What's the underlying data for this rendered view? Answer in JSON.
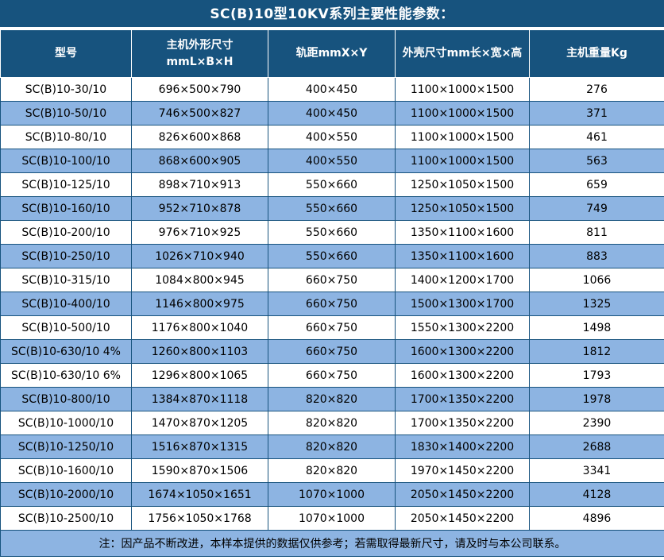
{
  "title": "SC(B)10型10KV系列主要性能参数：",
  "colors": {
    "header_bg": "#17537e",
    "header_text": "#ffffff",
    "row_bg": "#ffffff",
    "row_alt_bg": "#8db4e2",
    "border": "#17537e",
    "body_text": "#000000"
  },
  "table": {
    "columns": [
      {
        "label": "型号",
        "label2": ""
      },
      {
        "label": "主机外形尺寸",
        "label2": "mmL×B×H"
      },
      {
        "label": "轨距mmX×Y",
        "label2": ""
      },
      {
        "label": "外壳尺寸mm长×宽×高",
        "label2": ""
      },
      {
        "label": "主机重量Kg",
        "label2": ""
      }
    ],
    "rows": [
      [
        "SC(B)10-30/10",
        "696×500×790",
        "400×450",
        "1100×1000×1500",
        "276"
      ],
      [
        "SC(B)10-50/10",
        "746×500×827",
        "400×450",
        "1100×1000×1500",
        "371"
      ],
      [
        "SC(B)10-80/10",
        "826×600×868",
        "400×550",
        "1100×1000×1500",
        "461"
      ],
      [
        "SC(B)10-100/10",
        "868×600×905",
        "400×550",
        "1100×1000×1500",
        "563"
      ],
      [
        "SC(B)10-125/10",
        "898×710×913",
        "550×660",
        "1250×1050×1500",
        "659"
      ],
      [
        "SC(B)10-160/10",
        "952×710×878",
        "550×660",
        "1250×1050×1500",
        "749"
      ],
      [
        "SC(B)10-200/10",
        "976×710×925",
        "550×660",
        "1350×1100×1600",
        "811"
      ],
      [
        "SC(B)10-250/10",
        "1026×710×940",
        "550×660",
        "1350×1100×1600",
        "883"
      ],
      [
        "SC(B)10-315/10",
        "1084×800×945",
        "660×750",
        "1400×1200×1700",
        "1066"
      ],
      [
        "SC(B)10-400/10",
        "1146×800×975",
        "660×750",
        "1500×1300×1700",
        "1325"
      ],
      [
        "SC(B)10-500/10",
        "1176×800×1040",
        "660×750",
        "1550×1300×2200",
        "1498"
      ],
      [
        "SC(B)10-630/10 4%",
        "1260×800×1103",
        "660×750",
        "1600×1300×2200",
        "1812"
      ],
      [
        "SC(B)10-630/10 6%",
        "1296×800×1065",
        "660×750",
        "1600×1300×2200",
        "1793"
      ],
      [
        "SC(B)10-800/10",
        "1384×870×1118",
        "820×820",
        "1700×1350×2200",
        "1978"
      ],
      [
        "SC(B)10-1000/10",
        "1470×870×1205",
        "820×820",
        "1700×1350×2200",
        "2390"
      ],
      [
        "SC(B)10-1250/10",
        "1516×870×1315",
        "820×820",
        "1830×1400×2200",
        "2688"
      ],
      [
        "SC(B)10-1600/10",
        "1590×870×1506",
        "820×820",
        "1970×1450×2200",
        "3341"
      ],
      [
        "SC(B)10-2000/10",
        "1674×1050×1651",
        "1070×1000",
        "2050×1450×2200",
        "4128"
      ],
      [
        "SC(B)10-2500/10",
        "1756×1050×1768",
        "1070×1000",
        "2050×1450×2200",
        "4896"
      ]
    ]
  },
  "footer_note": "注：因产品不断改进，本样本提供的数据仅供参考；若需取得最新尺寸，请及时与本公司联系。"
}
